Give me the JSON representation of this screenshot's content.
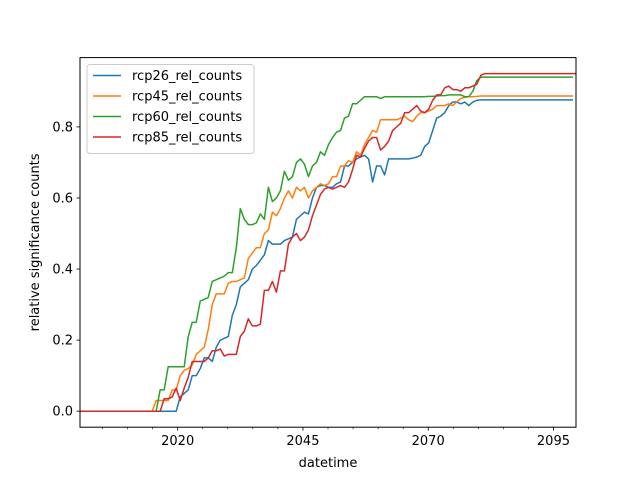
{
  "chart_data": {
    "type": "line",
    "title": "",
    "xlabel": "datetime",
    "ylabel": "relative significance counts",
    "xlim": [
      2000.5,
      2099.5
    ],
    "ylim": [
      -0.045,
      0.995
    ],
    "xticks": [
      2020,
      2045,
      2070,
      2095
    ],
    "yticks": [
      0.0,
      0.2,
      0.4,
      0.6,
      0.8
    ],
    "ytick_labels": [
      "0.0",
      "0.2",
      "0.4",
      "0.6",
      "0.8"
    ],
    "grid": false,
    "legend_position": "top-left",
    "x_step": 0.8,
    "x_start": 2000.5,
    "series": [
      {
        "name": "rcp26_rel_counts",
        "color": "#1f77b4",
        "values": [
          0,
          0,
          0,
          0,
          0,
          0,
          0,
          0,
          0,
          0,
          0,
          0,
          0,
          0,
          0,
          0,
          0,
          0,
          0,
          0,
          0,
          0,
          0,
          0,
          0,
          0.04,
          0.05,
          0.06,
          0.1,
          0.1,
          0.12,
          0.15,
          0.15,
          0.14,
          0.18,
          0.2,
          0.205,
          0.21,
          0.27,
          0.3,
          0.35,
          0.36,
          0.37,
          0.4,
          0.41,
          0.425,
          0.44,
          0.48,
          0.47,
          0.47,
          0.47,
          0.48,
          0.485,
          0.49,
          0.54,
          0.55,
          0.56,
          0.555,
          0.6,
          0.63,
          0.635,
          0.635,
          0.63,
          0.63,
          0.64,
          0.645,
          0.69,
          0.69,
          0.7,
          0.71,
          0.715,
          0.72,
          0.71,
          0.645,
          0.69,
          0.69,
          0.665,
          0.71,
          0.71,
          0.71,
          0.71,
          0.71,
          0.71,
          0.712,
          0.715,
          0.72,
          0.745,
          0.755,
          0.79,
          0.825,
          0.83,
          0.84,
          0.86,
          0.87,
          0.87,
          0.865,
          0.87,
          0.86,
          0.87,
          0.875,
          0.876,
          0.876,
          0.876,
          0.876,
          0.876,
          0.876,
          0.876,
          0.876,
          0.876,
          0.876,
          0.876,
          0.876,
          0.876,
          0.876,
          0.876,
          0.876,
          0.876,
          0.876,
          0.876,
          0.876,
          0.876,
          0.876,
          0.876,
          0.876
        ]
      },
      {
        "name": "rcp45_rel_counts",
        "color": "#ff7f0e",
        "values": [
          0,
          0,
          0,
          0,
          0,
          0,
          0,
          0,
          0,
          0,
          0,
          0,
          0,
          0,
          0,
          0,
          0,
          0,
          0,
          0.03,
          0.03,
          0.03,
          0.03,
          0.06,
          0.06,
          0.1,
          0.115,
          0.12,
          0.13,
          0.16,
          0.17,
          0.18,
          0.23,
          0.3,
          0.33,
          0.33,
          0.33,
          0.36,
          0.365,
          0.365,
          0.37,
          0.375,
          0.43,
          0.445,
          0.46,
          0.46,
          0.5,
          0.51,
          0.56,
          0.55,
          0.57,
          0.6,
          0.62,
          0.6,
          0.63,
          0.62,
          0.63,
          0.6,
          0.62,
          0.63,
          0.64,
          0.635,
          0.64,
          0.66,
          0.66,
          0.69,
          0.69,
          0.705,
          0.7,
          0.73,
          0.72,
          0.75,
          0.77,
          0.79,
          0.785,
          0.82,
          0.82,
          0.82,
          0.82,
          0.82,
          0.825,
          0.83,
          0.82,
          0.815,
          0.83,
          0.84,
          0.84,
          0.845,
          0.85,
          0.86,
          0.86,
          0.86,
          0.865,
          0.86,
          0.87,
          0.88,
          0.883,
          0.885,
          0.885,
          0.886,
          0.887,
          0.887,
          0.887,
          0.887,
          0.887,
          0.887,
          0.887,
          0.887,
          0.887,
          0.887,
          0.887,
          0.887,
          0.887,
          0.887,
          0.887,
          0.887,
          0.887,
          0.887,
          0.887,
          0.887,
          0.887,
          0.887,
          0.887,
          0.887
        ]
      },
      {
        "name": "rcp60_rel_counts",
        "color": "#2ca02c",
        "values": [
          0,
          0,
          0,
          0,
          0,
          0,
          0,
          0,
          0,
          0,
          0,
          0,
          0,
          0,
          0,
          0,
          0,
          0,
          0,
          0,
          0.06,
          0.06,
          0.125,
          0.125,
          0.125,
          0.125,
          0.125,
          0.21,
          0.25,
          0.25,
          0.31,
          0.315,
          0.32,
          0.365,
          0.37,
          0.375,
          0.38,
          0.39,
          0.39,
          0.46,
          0.57,
          0.54,
          0.525,
          0.525,
          0.53,
          0.555,
          0.54,
          0.63,
          0.59,
          0.6,
          0.62,
          0.675,
          0.65,
          0.66,
          0.7,
          0.71,
          0.695,
          0.66,
          0.69,
          0.7,
          0.73,
          0.72,
          0.75,
          0.77,
          0.785,
          0.79,
          0.825,
          0.83,
          0.865,
          0.865,
          0.875,
          0.885,
          0.885,
          0.885,
          0.885,
          0.88,
          0.885,
          0.885,
          0.885,
          0.885,
          0.885,
          0.885,
          0.885,
          0.885,
          0.885,
          0.885,
          0.885,
          0.886,
          0.886,
          0.887,
          0.888,
          0.888,
          0.89,
          0.89,
          0.89,
          0.89,
          0.885,
          0.885,
          0.9,
          0.93,
          0.94,
          0.94,
          0.94,
          0.94,
          0.94,
          0.94,
          0.94,
          0.94,
          0.94,
          0.94,
          0.94,
          0.94,
          0.94,
          0.94,
          0.94,
          0.94,
          0.94,
          0.94,
          0.94,
          0.94,
          0.94,
          0.94,
          0.94,
          0.94
        ]
      },
      {
        "name": "rcp85_rel_counts",
        "color": "#d62728",
        "values": [
          0,
          0,
          0,
          0,
          0,
          0,
          0,
          0,
          0,
          0,
          0,
          0,
          0,
          0,
          0,
          0,
          0,
          0,
          0,
          0,
          0,
          0.035,
          0.035,
          0.04,
          0.065,
          0.03,
          0.065,
          0.095,
          0.14,
          0.14,
          0.14,
          0.14,
          0.15,
          0.17,
          0.17,
          0.175,
          0.155,
          0.16,
          0.16,
          0.16,
          0.21,
          0.225,
          0.26,
          0.24,
          0.24,
          0.245,
          0.34,
          0.34,
          0.365,
          0.335,
          0.395,
          0.395,
          0.47,
          0.49,
          0.5,
          0.48,
          0.49,
          0.51,
          0.55,
          0.58,
          0.61,
          0.625,
          0.63,
          0.625,
          0.63,
          0.635,
          0.63,
          0.645,
          0.68,
          0.72,
          0.715,
          0.74,
          0.76,
          0.77,
          0.77,
          0.735,
          0.745,
          0.76,
          0.79,
          0.8,
          0.81,
          0.84,
          0.84,
          0.85,
          0.86,
          0.845,
          0.84,
          0.85,
          0.875,
          0.89,
          0.89,
          0.91,
          0.915,
          0.905,
          0.905,
          0.9,
          0.91,
          0.91,
          0.915,
          0.92,
          0.945,
          0.95,
          0.95,
          0.95,
          0.95,
          0.95,
          0.95,
          0.95,
          0.95,
          0.95,
          0.95,
          0.95,
          0.95,
          0.95,
          0.95,
          0.95,
          0.95,
          0.95,
          0.95,
          0.95,
          0.95,
          0.95,
          0.95,
          0.95,
          0.95
        ]
      }
    ]
  }
}
